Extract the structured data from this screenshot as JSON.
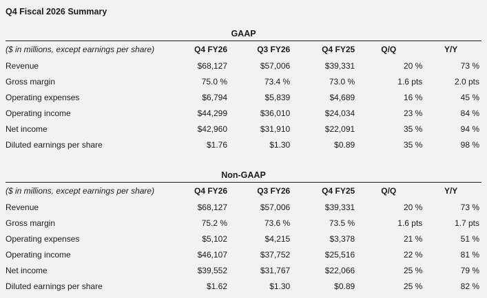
{
  "page": {
    "title": "Q4 Fiscal 2026 Summary",
    "background_color": "#f2f2f2",
    "text_color": "#1b1b1b",
    "rule_color": "#1a1a1a"
  },
  "tables": [
    {
      "caption": "GAAP",
      "note": "($ in millions, except earnings per share)",
      "columns": [
        "Q4 FY26",
        "Q3 FY26",
        "Q4 FY25",
        "Q/Q",
        "Y/Y"
      ],
      "rows": [
        {
          "label": "Revenue",
          "values": [
            "$68,127",
            "$57,006",
            "$39,331",
            "20 %",
            "73 %"
          ]
        },
        {
          "label": "Gross margin",
          "values": [
            "75.0 %",
            "73.4 %",
            "73.0 %",
            "1.6 pts",
            "2.0 pts"
          ]
        },
        {
          "label": "Operating expenses",
          "values": [
            "$6,794",
            "$5,839",
            "$4,689",
            "16 %",
            "45 %"
          ]
        },
        {
          "label": "Operating income",
          "values": [
            "$44,299",
            "$36,010",
            "$24,034",
            "23 %",
            "84 %"
          ]
        },
        {
          "label": "Net income",
          "values": [
            "$42,960",
            "$31,910",
            "$22,091",
            "35 %",
            "94 %"
          ]
        },
        {
          "label": "Diluted earnings per share",
          "values": [
            "$1.76",
            "$1.30",
            "$0.89",
            "35 %",
            "98 %"
          ]
        }
      ]
    },
    {
      "caption": "Non-GAAP",
      "note": "($ in millions, except earnings per share)",
      "columns": [
        "Q4 FY26",
        "Q3 FY26",
        "Q4 FY25",
        "Q/Q",
        "Y/Y"
      ],
      "rows": [
        {
          "label": "Revenue",
          "values": [
            "$68,127",
            "$57,006",
            "$39,331",
            "20 %",
            "73 %"
          ]
        },
        {
          "label": "Gross margin",
          "values": [
            "75.2 %",
            "73.6 %",
            "73.5 %",
            "1.6 pts",
            "1.7 pts"
          ]
        },
        {
          "label": "Operating expenses",
          "values": [
            "$5,102",
            "$4,215",
            "$3,378",
            "21 %",
            "51 %"
          ]
        },
        {
          "label": "Operating income",
          "values": [
            "$46,107",
            "$37,752",
            "$25,516",
            "22 %",
            "81 %"
          ]
        },
        {
          "label": "Net income",
          "values": [
            "$39,552",
            "$31,767",
            "$22,066",
            "25 %",
            "79 %"
          ]
        },
        {
          "label": "Diluted earnings per share",
          "values": [
            "$1.62",
            "$1.30",
            "$0.89",
            "25 %",
            "82 %"
          ]
        }
      ]
    }
  ]
}
